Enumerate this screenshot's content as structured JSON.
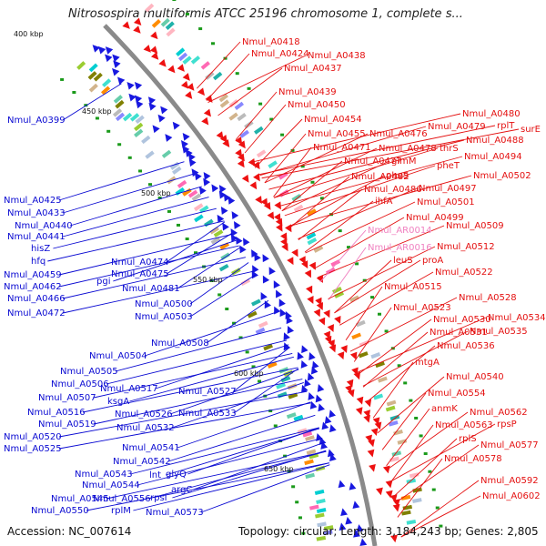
{
  "header": {
    "title": "Nitrosospira multiformis ATCC 25196 chromosome 1, complete s..."
  },
  "footer": {
    "accession": "Accession: NC_007614",
    "topology": "Topology: circular; Length: 3,184,243 bp; Genes: 2,805"
  },
  "colors": {
    "left_label": "#0a0ad2",
    "right_label": "#e41010",
    "rna_label": "#f080c0",
    "backbone": "#8a8a8a"
  },
  "scale_labels": [
    "400 kbp",
    "450 kbp",
    "500 kbp",
    "550 kbp",
    "600 kbp",
    "650 kbp"
  ],
  "left_labels": [
    "Nmul_A0399",
    "Nmul_A0425",
    "Nmul_A0433",
    "Nmul_A0440",
    "Nmul_A0441",
    "hisZ",
    "hfq",
    "Nmul_A0459",
    "Nmul_A0462",
    "Nmul_A0466",
    "Nmul_A0472",
    "Nmul_A0474",
    "Nmul_A0475",
    "pgi",
    "Nmul_A0481",
    "Nmul_A0500",
    "Nmul_A0503",
    "Nmul_A0504",
    "Nmul_A0505",
    "Nmul_A0506",
    "Nmul_A0507",
    "Nmul_A0508",
    "Nmul_A0516",
    "Nmul_A0517",
    "ksgA",
    "Nmul_A0519",
    "Nmul_A0520",
    "Nmul_A0525",
    "Nmul_A0526",
    "Nmul_A0527",
    "Nmul_A0532",
    "Nmul_A0533",
    "Nmul_A0541",
    "Nmul_A0542",
    "Nmul_A0543",
    "Nmul_A0544",
    "Nmul_A0545",
    "Nmul_A0550",
    "Nmul_A0556",
    "lnt",
    "glyQ",
    "rpsI",
    "argC",
    "rplM",
    "Nmul_A0573"
  ],
  "right_labels": [
    "Nmul_A0418",
    "Nmul_A0424",
    "Nmul_A0438",
    "Nmul_A0437",
    "Nmul_A0439",
    "Nmul_A0450",
    "Nmul_A0454",
    "Nmul_A0455",
    "Nmul_A0471",
    "Nmul_A0476",
    "Nmul_A0477",
    "Nmul_A0478",
    "Nmul_A0479",
    "Nmul_A0480",
    "rplT",
    "surE",
    "Nmul_A0488",
    "thrS",
    "glmM",
    "pheT",
    "Nmul_A0494",
    "pheS",
    "Nmul_A0482",
    "Nmul_A0486",
    "Nmul_A0497",
    "Nmul_A0502",
    "ihfA",
    "Nmul_A0501",
    "Nmul_A0499",
    "Nmul_A0509",
    "Nmul_AR0014",
    "Nmul_AR0016",
    "Nmul_A0512",
    "leuS",
    "proA",
    "Nmul_A0522",
    "Nmul_A0515",
    "Nmul_A0528",
    "Nmul_A0523",
    "Nmul_A0530",
    "Nmul_A0534",
    "Nmul_A0531",
    "Nmul_A0535",
    "Nmul_A0536",
    "mtgA",
    "Nmul_A0540",
    "Nmul_A0554",
    "anmK",
    "Nmul_A0562",
    "Nmul_A0563",
    "rpsP",
    "rplS",
    "Nmul_A0577",
    "Nmul_A0578",
    "Nmul_A0592",
    "Nmul_A0602"
  ]
}
